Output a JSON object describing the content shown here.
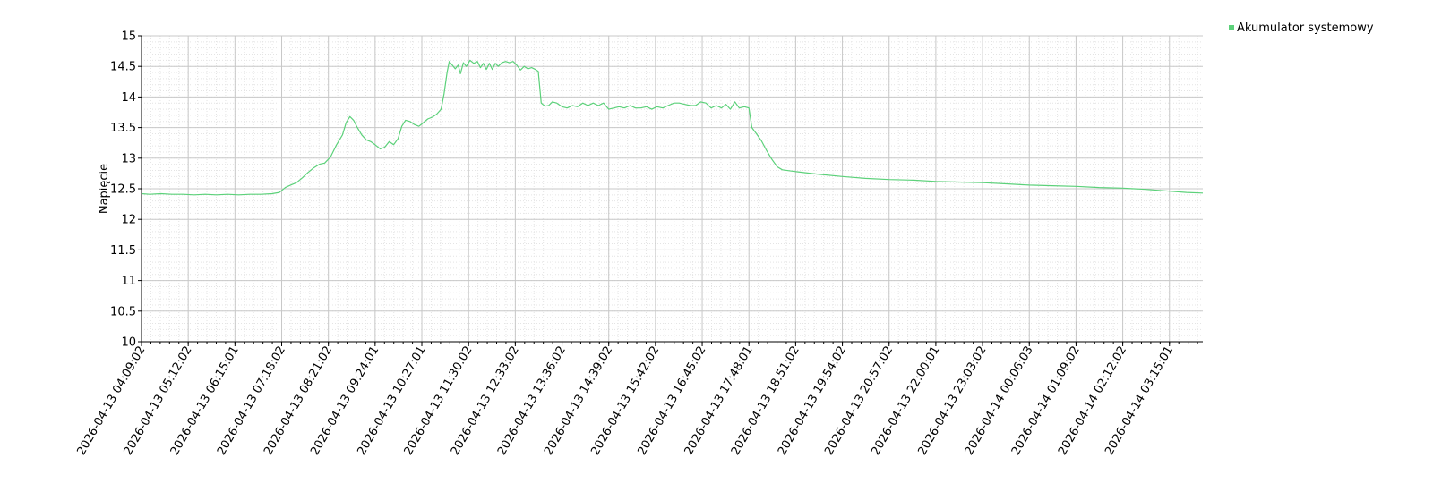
{
  "chart_data": {
    "type": "line",
    "title": "",
    "xlabel": "",
    "ylabel": "Napięcie",
    "ylim": [
      10,
      15
    ],
    "yticks": [
      10,
      10.5,
      11,
      11.5,
      12,
      12.5,
      13,
      13.5,
      14,
      14.5,
      15
    ],
    "xlim": [
      "2026-04-13 04:09:02",
      "2026-04-14 04:00:00"
    ],
    "xticks": [
      "2026-04-13 04:09:02",
      "2026-04-13 05:12:02",
      "2026-04-13 06:15:01",
      "2026-04-13 07:18:02",
      "2026-04-13 08:21:02",
      "2026-04-13 09:24:01",
      "2026-04-13 10:27:01",
      "2026-04-13 11:30:02",
      "2026-04-13 12:33:02",
      "2026-04-13 13:36:02",
      "2026-04-13 14:39:02",
      "2026-04-13 15:42:02",
      "2026-04-13 16:45:02",
      "2026-04-13 17:48:01",
      "2026-04-13 18:51:02",
      "2026-04-13 19:54:02",
      "2026-04-13 20:57:02",
      "2026-04-13 22:00:01",
      "2026-04-13 23:03:02",
      "2026-04-14 00:06:03",
      "2026-04-14 01:09:02",
      "2026-04-14 02:12:02",
      "2026-04-14 03:15:01"
    ],
    "grid": true,
    "legend_position": "top-right",
    "line_color": "#5cd17a",
    "series": [
      {
        "name": "Akumulator systemowy",
        "color": "#5cd17a",
        "points": [
          [
            "2026-04-13 04:09:02",
            12.42
          ],
          [
            "2026-04-13 04:20:00",
            12.41
          ],
          [
            "2026-04-13 04:35:00",
            12.42
          ],
          [
            "2026-04-13 04:50:00",
            12.41
          ],
          [
            "2026-04-13 05:05:00",
            12.41
          ],
          [
            "2026-04-13 05:20:00",
            12.4
          ],
          [
            "2026-04-13 05:35:00",
            12.41
          ],
          [
            "2026-04-13 05:50:00",
            12.4
          ],
          [
            "2026-04-13 06:05:00",
            12.41
          ],
          [
            "2026-04-13 06:20:00",
            12.4
          ],
          [
            "2026-04-13 06:35:00",
            12.41
          ],
          [
            "2026-04-13 06:50:00",
            12.41
          ],
          [
            "2026-04-13 07:05:00",
            12.42
          ],
          [
            "2026-04-13 07:15:00",
            12.44
          ],
          [
            "2026-04-13 07:23:00",
            12.52
          ],
          [
            "2026-04-13 07:30:00",
            12.56
          ],
          [
            "2026-04-13 07:38:00",
            12.6
          ],
          [
            "2026-04-13 07:46:00",
            12.68
          ],
          [
            "2026-04-13 07:53:00",
            12.76
          ],
          [
            "2026-04-13 08:01:00",
            12.84
          ],
          [
            "2026-04-13 08:09:00",
            12.9
          ],
          [
            "2026-04-13 08:16:00",
            12.92
          ],
          [
            "2026-04-13 08:24:00",
            13.02
          ],
          [
            "2026-04-13 08:32:00",
            13.22
          ],
          [
            "2026-04-13 08:40:00",
            13.38
          ],
          [
            "2026-04-13 08:45:00",
            13.58
          ],
          [
            "2026-04-13 08:50:00",
            13.68
          ],
          [
            "2026-04-13 08:55:00",
            13.62
          ],
          [
            "2026-04-13 09:00:00",
            13.5
          ],
          [
            "2026-04-13 09:06:00",
            13.38
          ],
          [
            "2026-04-13 09:12:00",
            13.3
          ],
          [
            "2026-04-13 09:18:00",
            13.27
          ],
          [
            "2026-04-13 09:24:00",
            13.22
          ],
          [
            "2026-04-13 09:31:00",
            13.15
          ],
          [
            "2026-04-13 09:37:00",
            13.18
          ],
          [
            "2026-04-13 09:43:00",
            13.27
          ],
          [
            "2026-04-13 09:49:00",
            13.22
          ],
          [
            "2026-04-13 09:55:00",
            13.32
          ],
          [
            "2026-04-13 10:00:00",
            13.52
          ],
          [
            "2026-04-13 10:05:00",
            13.62
          ],
          [
            "2026-04-13 10:11:00",
            13.6
          ],
          [
            "2026-04-13 10:17:00",
            13.55
          ],
          [
            "2026-04-13 10:23:00",
            13.52
          ],
          [
            "2026-04-13 10:29:00",
            13.58
          ],
          [
            "2026-04-13 10:35:00",
            13.64
          ],
          [
            "2026-04-13 10:41:00",
            13.67
          ],
          [
            "2026-04-13 10:47:00",
            13.72
          ],
          [
            "2026-04-13 10:53:00",
            13.8
          ],
          [
            "2026-04-13 10:57:00",
            14.05
          ],
          [
            "2026-04-13 11:01:00",
            14.4
          ],
          [
            "2026-04-13 11:04:00",
            14.58
          ],
          [
            "2026-04-13 11:08:00",
            14.52
          ],
          [
            "2026-04-13 11:12:00",
            14.46
          ],
          [
            "2026-04-13 11:16:00",
            14.52
          ],
          [
            "2026-04-13 11:19:00",
            14.38
          ],
          [
            "2026-04-13 11:23:00",
            14.56
          ],
          [
            "2026-04-13 11:27:00",
            14.5
          ],
          [
            "2026-04-13 11:32:00",
            14.6
          ],
          [
            "2026-04-13 11:37:00",
            14.55
          ],
          [
            "2026-04-13 11:42:00",
            14.58
          ],
          [
            "2026-04-13 11:46:00",
            14.48
          ],
          [
            "2026-04-13 11:50:00",
            14.55
          ],
          [
            "2026-04-13 11:54:00",
            14.45
          ],
          [
            "2026-04-13 11:58:00",
            14.55
          ],
          [
            "2026-04-13 12:02:00",
            14.45
          ],
          [
            "2026-04-13 12:06:00",
            14.55
          ],
          [
            "2026-04-13 12:10:00",
            14.5
          ],
          [
            "2026-04-13 12:15:00",
            14.56
          ],
          [
            "2026-04-13 12:20:00",
            14.58
          ],
          [
            "2026-04-13 12:25:00",
            14.56
          ],
          [
            "2026-04-13 12:30:00",
            14.58
          ],
          [
            "2026-04-13 12:35:00",
            14.52
          ],
          [
            "2026-04-13 12:40:00",
            14.44
          ],
          [
            "2026-04-13 12:45:00",
            14.5
          ],
          [
            "2026-04-13 12:50:00",
            14.46
          ],
          [
            "2026-04-13 12:55:00",
            14.48
          ],
          [
            "2026-04-13 13:00:00",
            14.45
          ],
          [
            "2026-04-13 13:04:00",
            14.42
          ],
          [
            "2026-04-13 13:08:00",
            13.9
          ],
          [
            "2026-04-13 13:13:00",
            13.85
          ],
          [
            "2026-04-13 13:18:00",
            13.86
          ],
          [
            "2026-04-13 13:23:00",
            13.92
          ],
          [
            "2026-04-13 13:29:00",
            13.9
          ],
          [
            "2026-04-13 13:36:00",
            13.84
          ],
          [
            "2026-04-13 13:43:00",
            13.82
          ],
          [
            "2026-04-13 13:50:00",
            13.86
          ],
          [
            "2026-04-13 13:57:00",
            13.84
          ],
          [
            "2026-04-13 14:04:00",
            13.9
          ],
          [
            "2026-04-13 14:11:00",
            13.86
          ],
          [
            "2026-04-13 14:18:00",
            13.9
          ],
          [
            "2026-04-13 14:25:00",
            13.86
          ],
          [
            "2026-04-13 14:32:00",
            13.9
          ],
          [
            "2026-04-13 14:39:00",
            13.8
          ],
          [
            "2026-04-13 14:46:00",
            13.82
          ],
          [
            "2026-04-13 14:53:00",
            13.84
          ],
          [
            "2026-04-13 15:00:00",
            13.82
          ],
          [
            "2026-04-13 15:08:00",
            13.86
          ],
          [
            "2026-04-13 15:15:00",
            13.82
          ],
          [
            "2026-04-13 15:22:00",
            13.82
          ],
          [
            "2026-04-13 15:30:00",
            13.84
          ],
          [
            "2026-04-13 15:37:00",
            13.8
          ],
          [
            "2026-04-13 15:44:00",
            13.84
          ],
          [
            "2026-04-13 15:52:00",
            13.82
          ],
          [
            "2026-04-13 15:59:00",
            13.86
          ],
          [
            "2026-04-13 16:07:00",
            13.9
          ],
          [
            "2026-04-13 16:14:00",
            13.9
          ],
          [
            "2026-04-13 16:21:00",
            13.88
          ],
          [
            "2026-04-13 16:29:00",
            13.86
          ],
          [
            "2026-04-13 16:36:00",
            13.86
          ],
          [
            "2026-04-13 16:43:00",
            13.92
          ],
          [
            "2026-04-13 16:50:00",
            13.9
          ],
          [
            "2026-04-13 16:57:00",
            13.82
          ],
          [
            "2026-04-13 17:04:00",
            13.86
          ],
          [
            "2026-04-13 17:11:00",
            13.82
          ],
          [
            "2026-04-13 17:17:00",
            13.88
          ],
          [
            "2026-04-13 17:23:00",
            13.8
          ],
          [
            "2026-04-13 17:29:00",
            13.92
          ],
          [
            "2026-04-13 17:35:00",
            13.82
          ],
          [
            "2026-04-13 17:42:00",
            13.84
          ],
          [
            "2026-04-13 17:48:00",
            13.82
          ],
          [
            "2026-04-13 17:52:00",
            13.5
          ],
          [
            "2026-04-13 17:58:00",
            13.4
          ],
          [
            "2026-04-13 18:05:00",
            13.28
          ],
          [
            "2026-04-13 18:12:00",
            13.12
          ],
          [
            "2026-04-13 18:19:00",
            12.98
          ],
          [
            "2026-04-13 18:26:00",
            12.86
          ],
          [
            "2026-04-13 18:33:00",
            12.81
          ],
          [
            "2026-04-13 18:51:00",
            12.78
          ],
          [
            "2026-04-13 19:20:00",
            12.74
          ],
          [
            "2026-04-13 19:54:00",
            12.7
          ],
          [
            "2026-04-13 20:25:00",
            12.67
          ],
          [
            "2026-04-13 20:57:00",
            12.65
          ],
          [
            "2026-04-13 21:30:00",
            12.64
          ],
          [
            "2026-04-13 22:00:00",
            12.62
          ],
          [
            "2026-04-13 22:30:00",
            12.61
          ],
          [
            "2026-04-13 23:03:00",
            12.6
          ],
          [
            "2026-04-13 23:35:00",
            12.58
          ],
          [
            "2026-04-14 00:06:00",
            12.56
          ],
          [
            "2026-04-14 00:37:00",
            12.55
          ],
          [
            "2026-04-14 01:09:00",
            12.54
          ],
          [
            "2026-04-14 01:40:00",
            12.52
          ],
          [
            "2026-04-14 02:12:00",
            12.51
          ],
          [
            "2026-04-14 02:43:00",
            12.49
          ],
          [
            "2026-04-14 03:15:00",
            12.46
          ],
          [
            "2026-04-14 03:38:00",
            12.44
          ],
          [
            "2026-04-14 04:00:00",
            12.43
          ]
        ]
      }
    ]
  }
}
